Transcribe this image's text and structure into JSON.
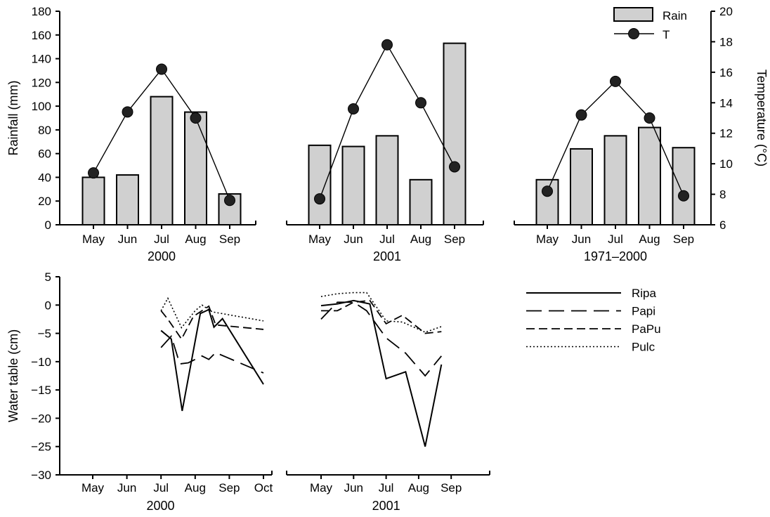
{
  "chart_data": [
    {
      "type": "bar",
      "panel": "2000",
      "categories": [
        "May",
        "Jun",
        "Jul",
        "Aug",
        "Sep"
      ],
      "series": [
        {
          "name": "Rain",
          "values": [
            40,
            42,
            108,
            95,
            26
          ]
        },
        {
          "name": "T",
          "type": "line",
          "axis": "right",
          "values": [
            9.4,
            13.4,
            16.2,
            13.0,
            7.6
          ]
        }
      ],
      "ylabel": "Rainfall (mm)",
      "ylim": [
        0,
        180
      ],
      "yticks": [
        0,
        20,
        40,
        60,
        80,
        100,
        120,
        140,
        160,
        180
      ],
      "y2label": "Temperature (°C)",
      "y2lim": [
        6,
        20
      ],
      "y2ticks": [
        6,
        8,
        10,
        12,
        14,
        16,
        18,
        20
      ],
      "legend": "top-right"
    },
    {
      "type": "bar",
      "panel": "2001",
      "categories": [
        "May",
        "Jun",
        "Jul",
        "Aug",
        "Sep"
      ],
      "series": [
        {
          "name": "Rain",
          "values": [
            67,
            66,
            75,
            38,
            153
          ]
        },
        {
          "name": "T",
          "type": "line",
          "axis": "right",
          "values": [
            7.7,
            13.6,
            17.8,
            14.0,
            9.8
          ]
        }
      ],
      "ylim": [
        0,
        180
      ],
      "y2lim": [
        6,
        20
      ]
    },
    {
      "type": "bar",
      "panel": "1971–2000",
      "categories": [
        "May",
        "Jun",
        "Jul",
        "Aug",
        "Sep"
      ],
      "series": [
        {
          "name": "Rain",
          "values": [
            38,
            64,
            75,
            82,
            65
          ]
        },
        {
          "name": "T",
          "type": "line",
          "axis": "right",
          "values": [
            8.2,
            13.2,
            15.4,
            13.0,
            7.9
          ]
        }
      ],
      "ylim": [
        0,
        180
      ],
      "y2lim": [
        6,
        20
      ]
    },
    {
      "type": "line",
      "panel": "2000",
      "categories": [
        "May",
        "Jun",
        "Jul",
        "Aug",
        "Sep",
        "Oct"
      ],
      "ylabel": "Water table (cm)",
      "ylim": [
        -30,
        5
      ],
      "yticks": [
        -30,
        -25,
        -20,
        -15,
        -10,
        -5,
        0,
        5
      ],
      "series": [
        {
          "name": "Ripa",
          "points": [
            [
              2.0,
              -4.5
            ],
            [
              2.3,
              -6.0
            ],
            [
              2.62,
              -18.7
            ],
            [
              3.15,
              -1.5
            ],
            [
              3.4,
              -0.8
            ],
            [
              3.55,
              -3.9
            ],
            [
              3.8,
              -2.4
            ],
            [
              5.0,
              -14.0
            ]
          ]
        },
        {
          "name": "Papi",
          "points": [
            [
              2.0,
              -7.5
            ],
            [
              2.3,
              -5.5
            ],
            [
              2.55,
              -10.4
            ],
            [
              2.8,
              -10.2
            ],
            [
              3.2,
              -9.0
            ],
            [
              3.4,
              -9.6
            ],
            [
              3.6,
              -8.4
            ],
            [
              5.0,
              -12.0
            ]
          ]
        },
        {
          "name": "PaPu",
          "points": [
            [
              2.0,
              -1.0
            ],
            [
              2.2,
              -2.5
            ],
            [
              2.6,
              -6.0
            ],
            [
              2.95,
              -2.0
            ],
            [
              3.4,
              -0.2
            ],
            [
              3.6,
              -3.5
            ],
            [
              5.0,
              -4.3
            ]
          ]
        },
        {
          "name": "Pulc",
          "points": [
            [
              2.0,
              -1.0
            ],
            [
              2.2,
              1.2
            ],
            [
              2.6,
              -4.0
            ],
            [
              3.0,
              -1.0
            ],
            [
              3.2,
              0.0
            ],
            [
              3.5,
              -1.2
            ],
            [
              5.0,
              -2.8
            ]
          ]
        }
      ]
    },
    {
      "type": "line",
      "panel": "2001",
      "categories": [
        "May",
        "Jun",
        "Jul",
        "Aug",
        "Sep"
      ],
      "ylim": [
        -30,
        5
      ],
      "series": [
        {
          "name": "Ripa",
          "points": [
            [
              0.0,
              -0.1
            ],
            [
              0.5,
              0.2
            ],
            [
              1.0,
              0.8
            ],
            [
              1.5,
              0.2
            ],
            [
              2.0,
              -13.0
            ],
            [
              2.6,
              -11.8
            ],
            [
              3.2,
              -25.0
            ],
            [
              3.7,
              -10.5
            ]
          ]
        },
        {
          "name": "Papi",
          "points": [
            [
              0.0,
              -2.5
            ],
            [
              0.5,
              0.5
            ],
            [
              1.0,
              0.5
            ],
            [
              1.4,
              -1.0
            ],
            [
              2.0,
              -5.8
            ],
            [
              2.6,
              -8.5
            ],
            [
              3.2,
              -12.5
            ],
            [
              3.7,
              -9.0
            ]
          ]
        },
        {
          "name": "PaPu",
          "points": [
            [
              0.0,
              -1.0
            ],
            [
              0.5,
              -1.0
            ],
            [
              1.0,
              0.5
            ],
            [
              1.5,
              0.8
            ],
            [
              2.0,
              -3.3
            ],
            [
              2.5,
              -1.8
            ],
            [
              3.2,
              -5.0
            ],
            [
              3.7,
              -4.7
            ]
          ]
        },
        {
          "name": "Pulc",
          "points": [
            [
              0.0,
              1.5
            ],
            [
              0.5,
              2.0
            ],
            [
              1.0,
              2.2
            ],
            [
              1.4,
              2.2
            ],
            [
              2.0,
              -2.8
            ],
            [
              2.5,
              -3.0
            ],
            [
              3.2,
              -4.8
            ],
            [
              3.7,
              -3.8
            ]
          ]
        }
      ],
      "legend": "right"
    }
  ]
}
